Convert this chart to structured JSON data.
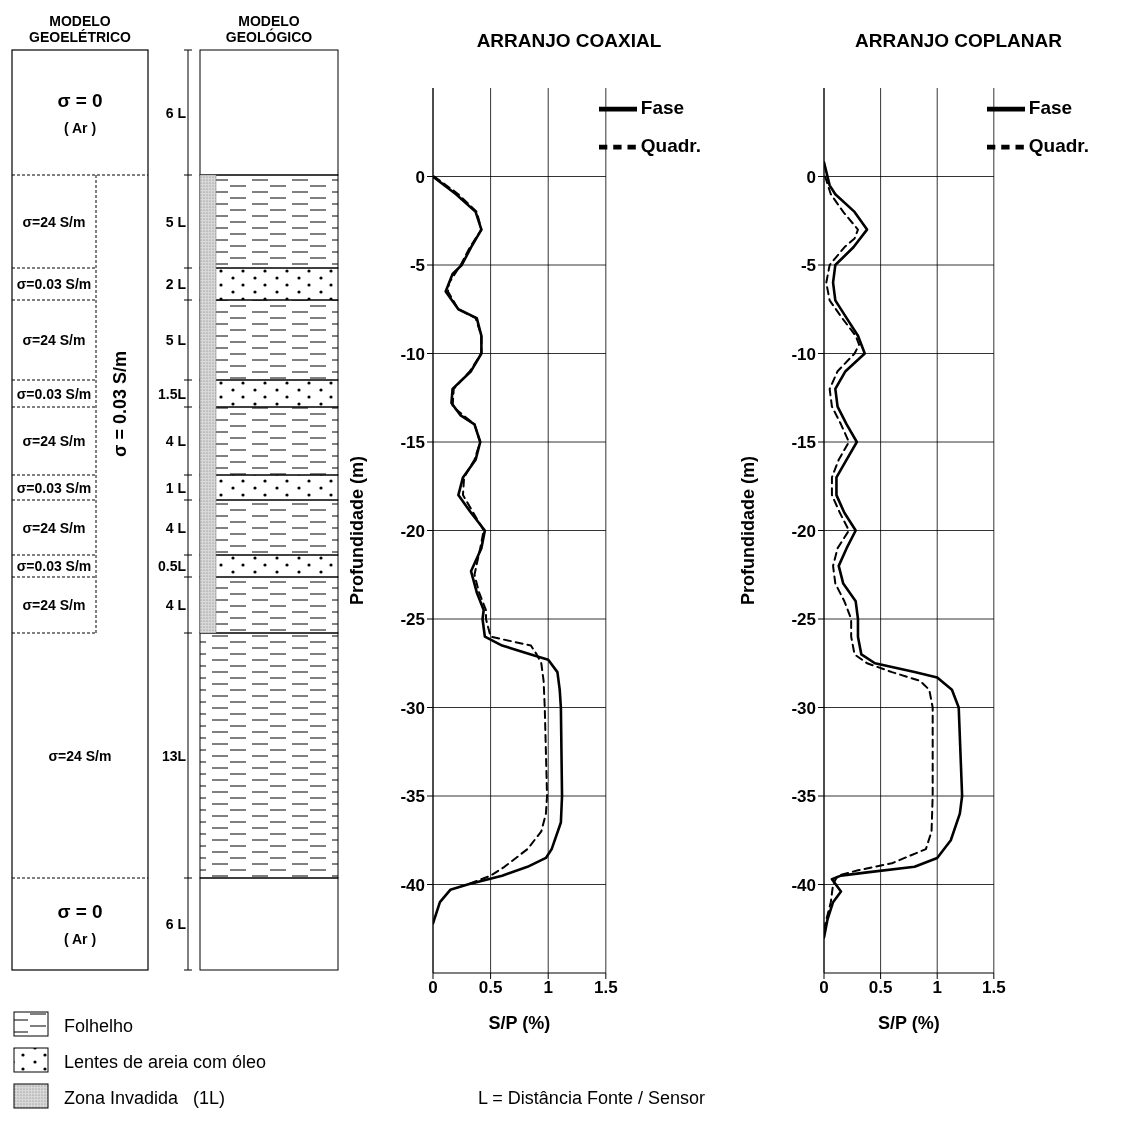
{
  "chart_data": [
    {
      "type": "other",
      "annotations": [
        "MODELO GEOELÉTRICO",
        "MODELO GEOLÓGICO",
        "σ = 0",
        "( Ar )",
        "6 L",
        "σ=24 S/m",
        "5 L",
        "σ=0.03 S/m",
        "2 L",
        "σ=24 S/m",
        "5 L",
        "σ=0.03 S/m",
        "1.5L",
        "σ=24 S/m",
        "4 L",
        "σ=0.03 S/m",
        "1 L",
        "σ=24 S/m",
        "4 L",
        "σ=0.03 S/m",
        "0.5L",
        "σ=24 S/m",
        "4 L",
        "σ=24 S/m",
        "13L",
        "σ = 0",
        "( Ar )",
        "6 L",
        "σ = 0.03 S/m",
        "Folhelho",
        "Lentes de areia com óleo",
        "Zona Invadida   (1L)",
        "L = Distância Fonte / Sensor"
      ]
    },
    {
      "type": "line",
      "title": "ARRANJO COAXIAL",
      "xlabel": "S/P (%)",
      "ylabel": "Profundidade   (m)",
      "xlim": [
        0,
        1.5
      ],
      "xticks": [
        0,
        0.5,
        1,
        1.5
      ],
      "ylim": [
        -45,
        5
      ],
      "yticks": [
        -40,
        -35,
        -30,
        -25,
        -20,
        -15,
        -10,
        -5,
        0
      ],
      "grid": true,
      "legend": "top right",
      "marker": "none",
      "series": [
        {
          "name": "Fase",
          "color": "#000000",
          "line_style": "solid",
          "x": [
            0,
            0.2,
            0.37,
            0.42,
            0.33,
            0.25,
            0.17,
            0.11,
            0.22,
            0.38,
            0.42,
            0.42,
            0.33,
            0.17,
            0.16,
            0.24,
            0.36,
            0.41,
            0.37,
            0.26,
            0.22,
            0.33,
            0.45,
            0.42,
            0.33,
            0.38,
            0.44,
            0.43,
            0.45,
            0.6,
            0.85,
            1.0,
            1.08,
            1.1,
            1.11,
            1.12,
            1.11,
            1.03,
            0.98,
            0.82,
            0.6,
            0.3,
            0.15,
            0.06,
            0
          ],
          "values": [
            0,
            -1,
            -2,
            -3,
            -4,
            -5,
            -5.5,
            -6.5,
            -7.5,
            -8,
            -9,
            -10,
            -11,
            -12,
            -12.8,
            -13.5,
            -14,
            -15,
            -16,
            -17,
            -18,
            -19,
            -20,
            -21,
            -22.3,
            -23.5,
            -24.5,
            -25,
            -26,
            -26.5,
            -27,
            -27.3,
            -28,
            -29,
            -30,
            -35,
            -36.5,
            -38,
            -38.5,
            -39,
            -39.5,
            -40,
            -40.3,
            -41,
            -42.2
          ]
        },
        {
          "name": "Quadr.",
          "color": "#000000",
          "line_style": "dashed",
          "x": [
            0.01,
            0.22,
            0.38,
            0.42,
            0.32,
            0.24,
            0.14,
            0.13,
            0.22,
            0.37,
            0.42,
            0.42,
            0.32,
            0.18,
            0.17,
            0.36,
            0.41,
            0.36,
            0.27,
            0.26,
            0.35,
            0.44,
            0.41,
            0.36,
            0.4,
            0.46,
            0.46,
            0.5,
            0.85,
            0.9,
            0.94,
            0.96,
            0.97,
            0.99,
            0.98,
            0.94,
            0.82,
            0.62,
            0.5,
            0.3
          ],
          "values": [
            0,
            -1,
            -2,
            -3,
            -4,
            -5,
            -6,
            -6.5,
            -7.5,
            -8,
            -9,
            -10,
            -11,
            -12,
            -13,
            -14,
            -15,
            -16,
            -17,
            -18,
            -19,
            -20,
            -21,
            -22.5,
            -23.5,
            -24.5,
            -25,
            -26,
            -26.5,
            -27,
            -27.5,
            -28.5,
            -30,
            -35,
            -36,
            -37,
            -38,
            -39,
            -39.5,
            -40
          ]
        }
      ]
    },
    {
      "type": "line",
      "title": "ARRANJO COPLANAR",
      "xlabel": "S/P (%)",
      "ylabel": "Profundidade   (m)",
      "xlim": [
        0,
        1.5
      ],
      "xticks": [
        0,
        0.5,
        1,
        1.5
      ],
      "ylim": [
        -45,
        5
      ],
      "yticks": [
        -40,
        -35,
        -30,
        -25,
        -20,
        -15,
        -10,
        -5,
        0
      ],
      "grid": true,
      "legend": "top right",
      "marker": "none",
      "series": [
        {
          "name": "Fase",
          "color": "#000000",
          "line_style": "solid",
          "x": [
            0,
            0.05,
            0.1,
            0.27,
            0.38,
            0.26,
            0.1,
            0.08,
            0.1,
            0.2,
            0.3,
            0.36,
            0.19,
            0.1,
            0.12,
            0.2,
            0.29,
            0.2,
            0.11,
            0.11,
            0.18,
            0.28,
            0.2,
            0.13,
            0.17,
            0.28,
            0.3,
            0.3,
            0.33,
            0.45,
            0.8,
            1.0,
            1.13,
            1.19,
            1.22,
            1.2,
            1.12,
            1.0,
            0.8,
            0.4,
            0.15,
            0.07,
            0.15,
            0.08,
            0.03,
            0
          ],
          "values": [
            0.8,
            -0.5,
            -1,
            -2,
            -3,
            -4,
            -5,
            -6,
            -7,
            -8,
            -9,
            -10,
            -11,
            -12,
            -13,
            -14,
            -15,
            -16,
            -17,
            -18,
            -19,
            -20,
            -21,
            -22,
            -23,
            -24,
            -25,
            -26,
            -27,
            -27.5,
            -28,
            -28.3,
            -29,
            -30,
            -35,
            -36,
            -37.5,
            -38.5,
            -39,
            -39.3,
            -39.5,
            -39.7,
            -40.4,
            -41,
            -42,
            -43
          ]
        },
        {
          "name": "Quadr.",
          "color": "#000000",
          "line_style": "dashed",
          "x": [
            0.01,
            0.06,
            0.17,
            0.3,
            0.27,
            0.18,
            0.05,
            0.02,
            0.05,
            0.16,
            0.28,
            0.31,
            0.27,
            0.12,
            0.05,
            0.07,
            0.15,
            0.22,
            0.13,
            0.07,
            0.07,
            0.14,
            0.22,
            0.12,
            0.08,
            0.1,
            0.18,
            0.24,
            0.24,
            0.27,
            0.38,
            0.6,
            0.85,
            0.93,
            0.96,
            0.96,
            0.95,
            0.9,
            0.6,
            0.3,
            0.12,
            0.08,
            0.06,
            0.02,
            0
          ],
          "values": [
            0,
            -1,
            -2,
            -3,
            -3.5,
            -4,
            -5,
            -6,
            -7,
            -8,
            -9,
            -9.5,
            -10,
            -11,
            -12,
            -13,
            -14,
            -15,
            -16,
            -17,
            -18,
            -19,
            -20,
            -21,
            -22,
            -23,
            -24,
            -25,
            -26,
            -27,
            -27.5,
            -28,
            -28.5,
            -29,
            -30,
            -35,
            -37,
            -38,
            -38.8,
            -39.2,
            -39.5,
            -40,
            -41,
            -42,
            -42.5
          ]
        }
      ]
    }
  ]
}
